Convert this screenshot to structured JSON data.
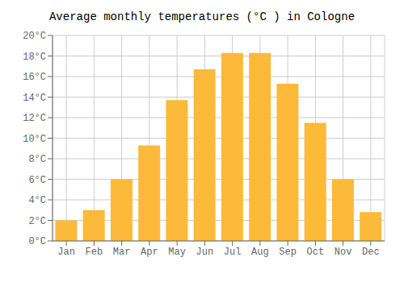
{
  "chart_data": {
    "type": "bar",
    "title": "Average monthly temperatures (°C ) in Cologne",
    "categories": [
      "Jan",
      "Feb",
      "Mar",
      "Apr",
      "May",
      "Jun",
      "Jul",
      "Aug",
      "Sep",
      "Oct",
      "Nov",
      "Dec"
    ],
    "values": [
      2.0,
      3.0,
      6.0,
      9.3,
      13.7,
      16.7,
      18.3,
      18.3,
      15.3,
      11.5,
      6.0,
      2.8
    ],
    "color": "#FDB93A",
    "ylim": [
      0,
      20
    ],
    "yticks": [
      {
        "value": 0,
        "label": "0°C"
      },
      {
        "value": 2,
        "label": "2°C"
      },
      {
        "value": 4,
        "label": "4°C"
      },
      {
        "value": 6,
        "label": "6°C"
      },
      {
        "value": 8,
        "label": "8°C"
      },
      {
        "value": 10,
        "label": "10°C"
      },
      {
        "value": 12,
        "label": "12°C"
      },
      {
        "value": 14,
        "label": "14°C"
      },
      {
        "value": 16,
        "label": "16°C"
      },
      {
        "value": 18,
        "label": "18°C"
      },
      {
        "value": 20,
        "label": "20°C"
      }
    ],
    "grid": true
  }
}
